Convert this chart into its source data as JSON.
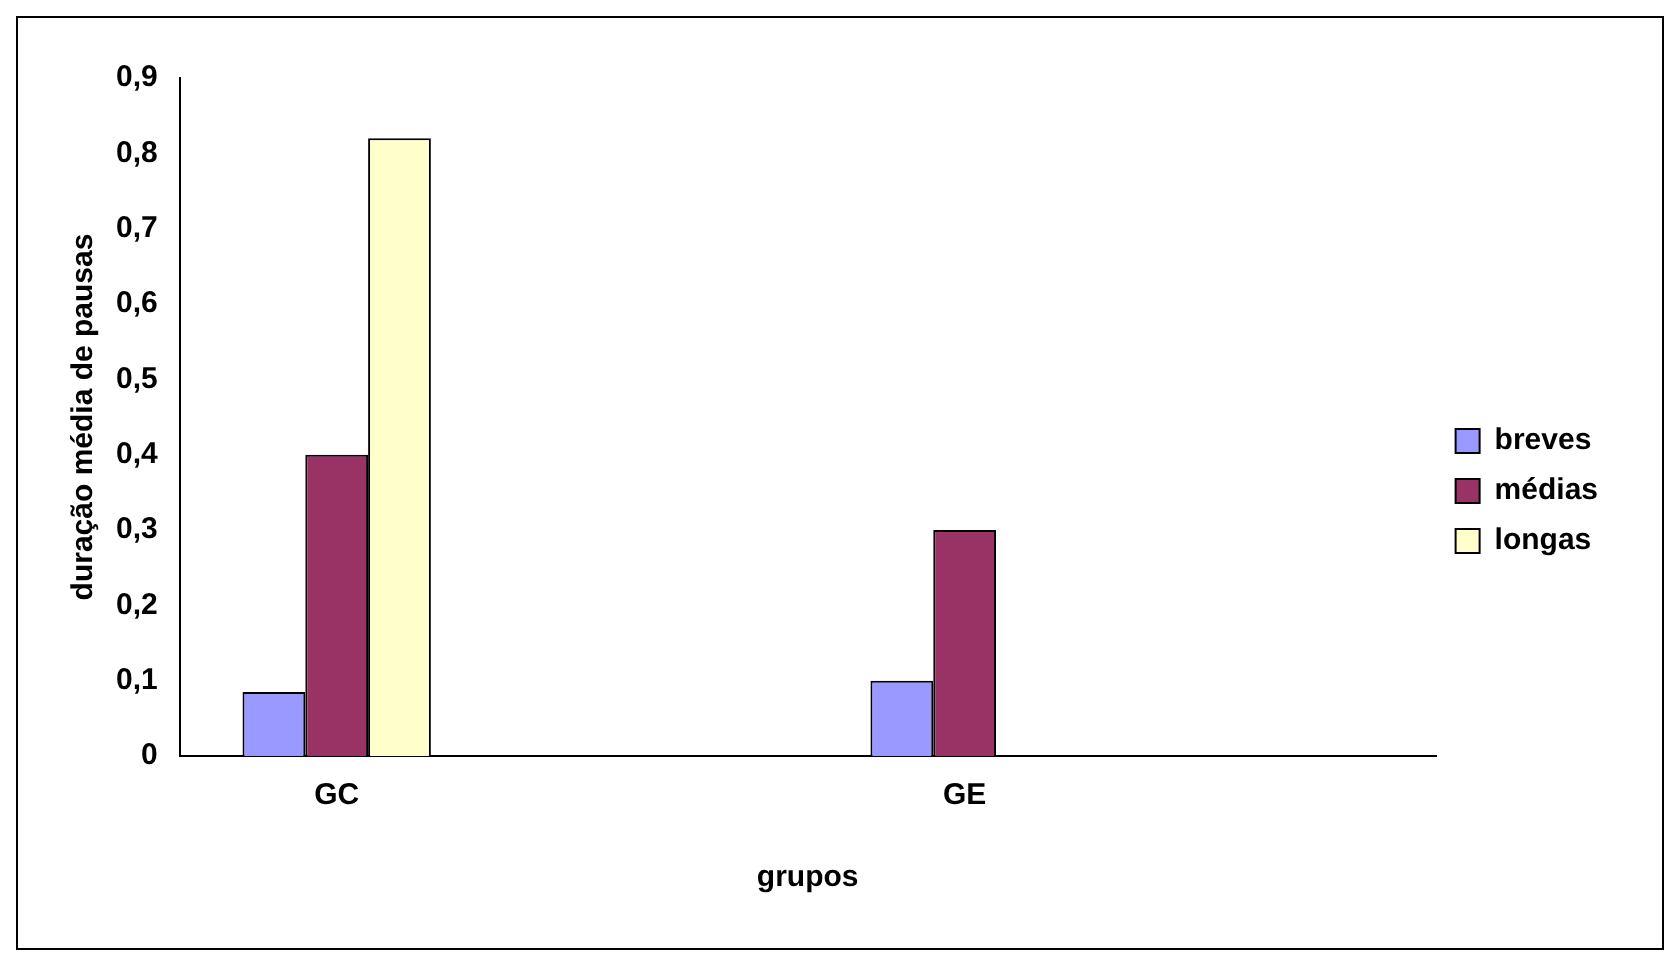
{
  "chart_data": {
    "type": "bar",
    "xlabel": "grupos",
    "ylabel": "duração média de pausas",
    "categories": [
      "GC",
      null,
      "GE",
      null
    ],
    "series": [
      {
        "name": "breves",
        "color": "#9999ff",
        "values": [
          0.085,
          null,
          0.1,
          null
        ]
      },
      {
        "name": "médias",
        "color": "#993366",
        "values": [
          0.4,
          null,
          0.3,
          null
        ]
      },
      {
        "name": "longas",
        "color": "#ffffcc",
        "values": [
          0.82,
          null,
          null,
          null
        ]
      }
    ],
    "ylim": [
      0,
      0.9
    ],
    "yticks": [
      0,
      {
        "value": 0.1,
        "label": "0,1"
      },
      {
        "value": 0.2,
        "label": "0,2"
      },
      {
        "value": 0.3,
        "label": "0,3"
      },
      {
        "value": 0.4,
        "label": "0,4"
      },
      {
        "value": 0.5,
        "label": "0,5"
      },
      {
        "value": 0.6,
        "label": "0,6"
      },
      {
        "value": 0.7,
        "label": "0,7"
      },
      {
        "value": 0.8,
        "label": "0,8"
      },
      {
        "value": 0.9,
        "label": "0,9"
      }
    ],
    "grid": false,
    "legend": "right"
  }
}
